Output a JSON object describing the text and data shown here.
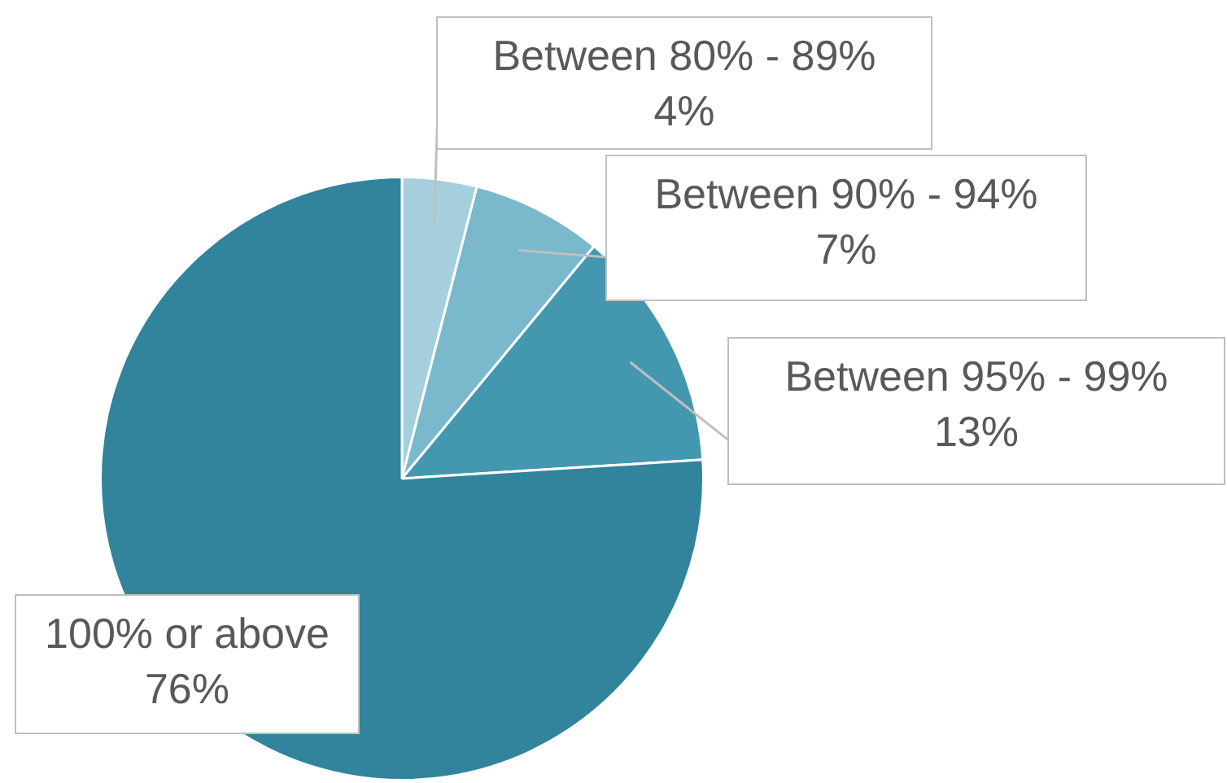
{
  "chart_data": {
    "type": "pie",
    "categories": [
      "Between 80% - 89%",
      "Between 90% - 94%",
      "Between 95% - 99%",
      "100% or above"
    ],
    "values": [
      4,
      7,
      13,
      76
    ],
    "colors": [
      "#a5cfdd",
      "#7ab8cc",
      "#4398b0",
      "#31849b"
    ],
    "value_labels": [
      "4%",
      "7%",
      "13%",
      "76%"
    ],
    "legend": false
  }
}
